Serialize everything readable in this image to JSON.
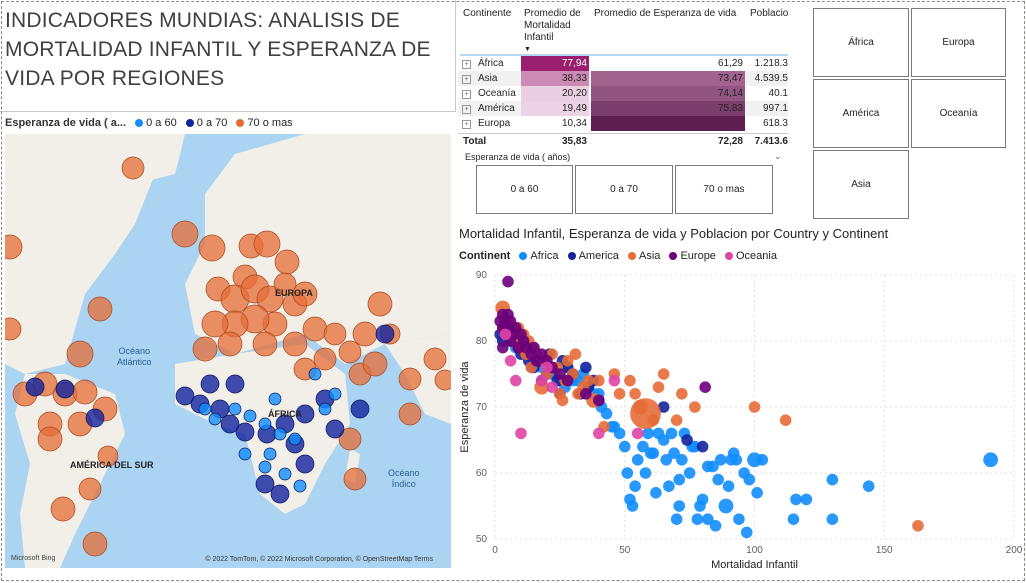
{
  "title": "INDICADORES MUNDIAS: ANALISIS DE MORTALIDAD INFANTIL Y ESPERANZA DE VIDA POR REGIONES",
  "map": {
    "legend_title": "Esperanza de vida ( a...",
    "legend": [
      {
        "label": "0 a 60",
        "color": "#118dff"
      },
      {
        "label": "0 a 70",
        "color": "#12239e"
      },
      {
        "label": "70 o mas",
        "color": "#e66c37"
      }
    ],
    "ocean_labels": [
      "Océano Atlántico",
      "Océano Índico"
    ],
    "land_labels": [
      "ÁFRICA",
      "AMÉRICA DEL SUR",
      "EUROPA"
    ],
    "credit": "© 2022 TomTom, © 2022 Microsoft Corporation, © OpenStreetMap  Terms",
    "logo": "Microsoft Bing"
  },
  "table": {
    "headers": [
      "Continente",
      "Promedio de Mortalidad Infantil",
      "Promedio de Esperanza de vida",
      "Poblacio"
    ],
    "rows": [
      {
        "continent": "África",
        "mortality": "77,94",
        "life": "61,29",
        "population": "1.218.3"
      },
      {
        "continent": "Asia",
        "mortality": "38,33",
        "life": "73,47",
        "population": "4.539.5"
      },
      {
        "continent": "Oceanía",
        "mortality": "20,20",
        "life": "74,14",
        "population": "40.1"
      },
      {
        "continent": "América",
        "mortality": "19,49",
        "life": "75,83",
        "population": "997.1"
      },
      {
        "continent": "Europa",
        "mortality": "10,34",
        "life": "78,73",
        "population": "618.3"
      }
    ],
    "total": {
      "label": "Total",
      "mortality": "35,83",
      "life": "72,28",
      "population": "7.413.6"
    }
  },
  "life_slicer": {
    "title": "Esperanza de vida ( años)",
    "options": [
      "0 a 60",
      "0 a 70",
      "70 o mas"
    ]
  },
  "continent_slicer": {
    "options": [
      "África",
      "Europa",
      "América",
      "Oceanía",
      "Asia"
    ]
  },
  "chart_data": {
    "type": "scatter",
    "title": "Mortalidad Infantil, Esperanza de vida y Poblacion por Country y Continent",
    "xlabel": "Mortalidad Infantil",
    "ylabel": "Esperanza de vida",
    "xlim": [
      0,
      200
    ],
    "ylim": [
      50,
      90
    ],
    "xticks": [
      0,
      50,
      100,
      150,
      200
    ],
    "yticks": [
      50,
      60,
      70,
      80,
      90
    ],
    "legend_title": "Continent",
    "series": [
      {
        "name": "Africa",
        "color": "#118dff",
        "points": [
          [
            191,
            62,
            4
          ],
          [
            144,
            58,
            3
          ],
          [
            130,
            59,
            3
          ],
          [
            130,
            53,
            3
          ],
          [
            120,
            56,
            3
          ],
          [
            116,
            56,
            3
          ],
          [
            115,
            53,
            3
          ],
          [
            103,
            62,
            3
          ],
          [
            101,
            57,
            3
          ],
          [
            100,
            62,
            4
          ],
          [
            98,
            59,
            3
          ],
          [
            97,
            51,
            3
          ],
          [
            96,
            60,
            3
          ],
          [
            94,
            53,
            3
          ],
          [
            93,
            62,
            3
          ],
          [
            92,
            63,
            3
          ],
          [
            91,
            62,
            3
          ],
          [
            90,
            58,
            3
          ],
          [
            89,
            55,
            4
          ],
          [
            87,
            62,
            3
          ],
          [
            86,
            59,
            3
          ],
          [
            85,
            52,
            3
          ],
          [
            84,
            61,
            3
          ],
          [
            82,
            61,
            3
          ],
          [
            82,
            53,
            3
          ],
          [
            80,
            56,
            3
          ],
          [
            79,
            55,
            3
          ],
          [
            78,
            53,
            3
          ],
          [
            77,
            64,
            3
          ],
          [
            76,
            64,
            3
          ],
          [
            75,
            60,
            3
          ],
          [
            73,
            66,
            3
          ],
          [
            72,
            62,
            3
          ],
          [
            71,
            59,
            3
          ],
          [
            71,
            55,
            3
          ],
          [
            70,
            53,
            3
          ],
          [
            69,
            63,
            3
          ],
          [
            68,
            66,
            3
          ],
          [
            67,
            58,
            3
          ],
          [
            66,
            62,
            3
          ],
          [
            65,
            65,
            3
          ],
          [
            63,
            66,
            3
          ],
          [
            62,
            57,
            3
          ],
          [
            61,
            63,
            3
          ],
          [
            60,
            63,
            3
          ],
          [
            59,
            66,
            3
          ],
          [
            58,
            60,
            3
          ],
          [
            57,
            64,
            3
          ],
          [
            55,
            62,
            3
          ],
          [
            54,
            58,
            3
          ],
          [
            53,
            55,
            3
          ],
          [
            52,
            56,
            3
          ],
          [
            51,
            60,
            3
          ],
          [
            50,
            64,
            3
          ],
          [
            48,
            66,
            3
          ],
          [
            46,
            67,
            3
          ],
          [
            45,
            67,
            3
          ],
          [
            43,
            69,
            3
          ],
          [
            41,
            70,
            3
          ],
          [
            40,
            72,
            3
          ],
          [
            38,
            72,
            3
          ],
          [
            36,
            73,
            3
          ],
          [
            34,
            75,
            3
          ],
          [
            32,
            74,
            3
          ],
          [
            30,
            74,
            3
          ],
          [
            28,
            76,
            3
          ],
          [
            27,
            73,
            3
          ],
          [
            25,
            74,
            3
          ],
          [
            23,
            75,
            3
          ],
          [
            22,
            75,
            3
          ],
          [
            20,
            75,
            3
          ],
          [
            18,
            76,
            3
          ],
          [
            16,
            78,
            3
          ],
          [
            15,
            77,
            3
          ],
          [
            14,
            76,
            3
          ],
          [
            13,
            79,
            3
          ],
          [
            12,
            78,
            3
          ],
          [
            11,
            80,
            3
          ],
          [
            10,
            79,
            3
          ],
          [
            9,
            80,
            3
          ],
          [
            8,
            79,
            3
          ],
          [
            7,
            81,
            3
          ],
          [
            6,
            82,
            3
          ]
        ]
      },
      {
        "name": "America",
        "color": "#12239e",
        "points": [
          [
            80,
            64,
            3
          ],
          [
            74,
            65,
            3
          ],
          [
            65,
            70,
            3
          ],
          [
            40,
            71,
            3
          ],
          [
            38,
            74,
            3
          ],
          [
            36,
            73,
            3
          ],
          [
            35,
            76,
            3
          ],
          [
            33,
            72,
            3
          ],
          [
            30,
            75,
            3
          ],
          [
            28,
            76,
            3
          ],
          [
            26,
            77,
            3
          ],
          [
            25,
            72,
            3
          ],
          [
            24,
            74,
            3
          ],
          [
            22,
            76,
            3
          ],
          [
            21,
            78,
            3
          ],
          [
            20,
            75,
            3
          ],
          [
            19,
            77,
            3
          ],
          [
            18,
            74,
            3
          ],
          [
            17,
            77,
            3
          ],
          [
            16,
            78,
            3
          ],
          [
            15,
            76,
            3
          ],
          [
            14,
            79,
            3
          ],
          [
            13,
            77,
            3
          ],
          [
            12,
            79,
            3
          ],
          [
            11,
            80,
            3
          ],
          [
            10,
            78,
            3
          ],
          [
            9,
            79,
            3
          ],
          [
            8,
            81,
            3
          ],
          [
            7,
            82,
            3
          ],
          [
            6,
            80,
            3
          ],
          [
            5,
            83,
            3
          ],
          [
            4,
            82,
            3
          ],
          [
            3,
            80,
            3
          ],
          [
            2,
            81,
            3
          ]
        ]
      },
      {
        "name": "Asia",
        "color": "#e66c37",
        "points": [
          [
            163,
            52,
            3
          ],
          [
            112,
            68,
            3
          ],
          [
            100,
            70,
            3
          ],
          [
            77,
            70,
            3
          ],
          [
            72,
            72,
            3
          ],
          [
            70,
            68,
            3
          ],
          [
            65,
            75,
            3
          ],
          [
            63,
            73,
            3
          ],
          [
            61,
            68,
            3
          ],
          [
            58,
            69,
            9
          ],
          [
            56,
            70,
            4
          ],
          [
            54,
            72,
            3
          ],
          [
            52,
            74,
            3
          ],
          [
            48,
            72,
            3
          ],
          [
            46,
            75,
            3
          ],
          [
            42,
            67,
            3
          ],
          [
            40,
            74,
            3
          ],
          [
            38,
            71,
            4
          ],
          [
            36,
            74,
            3
          ],
          [
            34,
            73,
            3
          ],
          [
            32,
            72,
            3
          ],
          [
            31,
            78,
            3
          ],
          [
            30,
            75,
            3
          ],
          [
            28,
            77,
            3
          ],
          [
            27,
            74,
            3
          ],
          [
            26,
            71,
            3
          ],
          [
            25,
            72,
            3
          ],
          [
            24,
            76,
            3
          ],
          [
            22,
            78,
            3
          ],
          [
            21,
            76,
            3
          ],
          [
            20,
            75,
            3
          ],
          [
            19,
            77,
            3
          ],
          [
            18,
            73,
            4
          ],
          [
            16,
            78,
            3
          ],
          [
            15,
            79,
            3
          ],
          [
            14,
            76,
            3
          ],
          [
            13,
            80,
            3
          ],
          [
            12,
            78,
            3
          ],
          [
            11,
            81,
            3
          ],
          [
            10,
            79,
            3
          ],
          [
            9,
            82,
            3
          ],
          [
            8,
            80,
            3
          ],
          [
            7,
            81,
            3
          ],
          [
            5,
            83,
            3
          ],
          [
            3,
            85,
            4
          ],
          [
            3,
            82,
            3
          ]
        ]
      },
      {
        "name": "Europe",
        "color": "#6b007b",
        "points": [
          [
            81,
            73,
            3
          ],
          [
            40,
            71,
            3
          ],
          [
            35,
            72,
            3
          ],
          [
            28,
            74,
            3
          ],
          [
            25,
            75,
            3
          ],
          [
            22,
            76,
            3
          ],
          [
            20,
            77,
            3
          ],
          [
            18,
            78,
            3
          ],
          [
            16,
            77,
            3
          ],
          [
            15,
            79,
            3
          ],
          [
            14,
            78,
            3
          ],
          [
            12,
            79,
            3
          ],
          [
            11,
            80,
            3
          ],
          [
            10,
            81,
            3
          ],
          [
            9,
            79,
            3
          ],
          [
            8,
            82,
            3
          ],
          [
            7,
            81,
            3
          ],
          [
            6,
            83,
            3
          ],
          [
            6,
            80,
            3
          ],
          [
            5,
            82,
            3
          ],
          [
            5,
            84,
            3
          ],
          [
            4,
            83,
            3
          ],
          [
            4,
            81,
            3
          ],
          [
            3,
            84,
            3
          ],
          [
            3,
            82,
            3
          ],
          [
            2,
            83,
            3
          ],
          [
            5,
            89,
            3
          ],
          [
            3,
            79,
            3
          ]
        ]
      },
      {
        "name": "Oceania",
        "color": "#e044a7",
        "points": [
          [
            55,
            66,
            3
          ],
          [
            46,
            74,
            3
          ],
          [
            40,
            66,
            3
          ],
          [
            22,
            73,
            3
          ],
          [
            20,
            76,
            3
          ],
          [
            18,
            74,
            3
          ],
          [
            10,
            66,
            3
          ],
          [
            8,
            74,
            3
          ],
          [
            6,
            77,
            3
          ],
          [
            4,
            81,
            3
          ]
        ]
      }
    ]
  }
}
